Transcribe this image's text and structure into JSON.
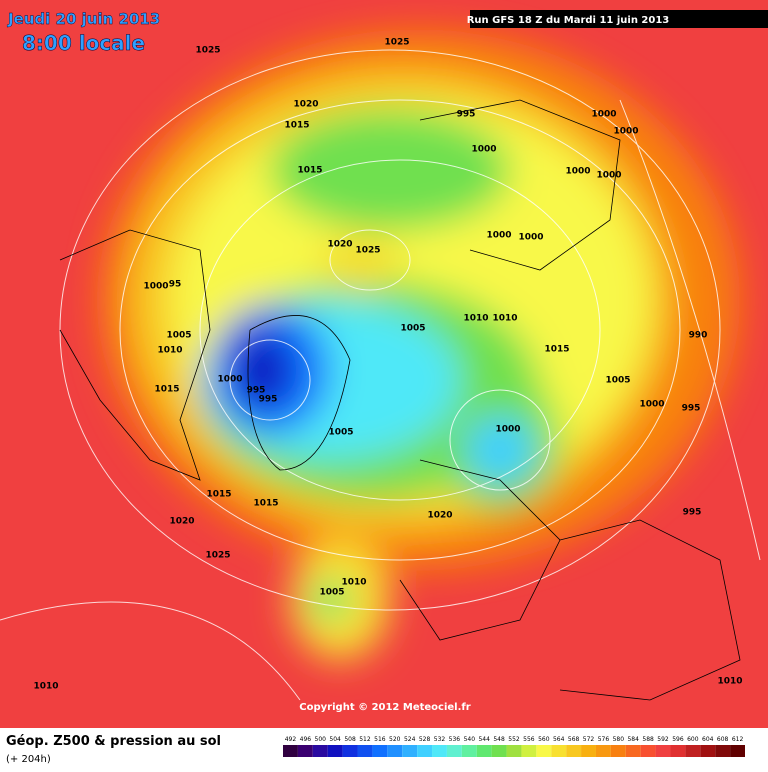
{
  "header": {
    "date": "Jeudi 20 juin 2013",
    "time": "8:00 locale",
    "run": "Run GFS 18 Z du Mardi 11 juin 2013"
  },
  "map": {
    "isobar_labels": [
      "1025",
      "1025",
      "1020",
      "995",
      "1000",
      "1000",
      "1015",
      "1000",
      "1015",
      "1000",
      "1000",
      "1020",
      "1025",
      "1000",
      "1000",
      "1000",
      "95",
      "1005",
      "1010",
      "1005",
      "1010",
      "1010",
      "1015",
      "990",
      "1015",
      "1000",
      "995",
      "995",
      "1005",
      "1000",
      "995",
      "1005",
      "1000",
      "1015",
      "1015",
      "1020",
      "1020",
      "995",
      "1025",
      "1010",
      "1005",
      "1010",
      "1010"
    ],
    "copyright": "Copyright © 2012 Meteociel.fr"
  },
  "legend": {
    "title": "Géop. Z500 & pression au sol",
    "subtitle": "(+ 204h)",
    "levels": [
      492,
      496,
      500,
      504,
      508,
      512,
      516,
      520,
      524,
      528,
      532,
      536,
      540,
      544,
      548,
      552,
      556,
      560,
      564,
      568,
      572,
      576,
      580,
      584,
      588,
      592,
      596,
      600,
      604,
      608,
      612
    ],
    "colors": [
      "#300040",
      "#3a0070",
      "#2a0aa0",
      "#1010c0",
      "#1030e0",
      "#1050f0",
      "#1070ff",
      "#2090ff",
      "#30b0ff",
      "#40d0ff",
      "#50e8f8",
      "#60f0d0",
      "#60f0a0",
      "#60e870",
      "#70e050",
      "#a0e040",
      "#d0f040",
      "#f8f848",
      "#f8e030",
      "#f8c820",
      "#f8b010",
      "#f89810",
      "#f88010",
      "#f86820",
      "#f85030",
      "#f04040",
      "#e03030",
      "#c02020",
      "#a01010",
      "#800808",
      "#600000"
    ]
  }
}
